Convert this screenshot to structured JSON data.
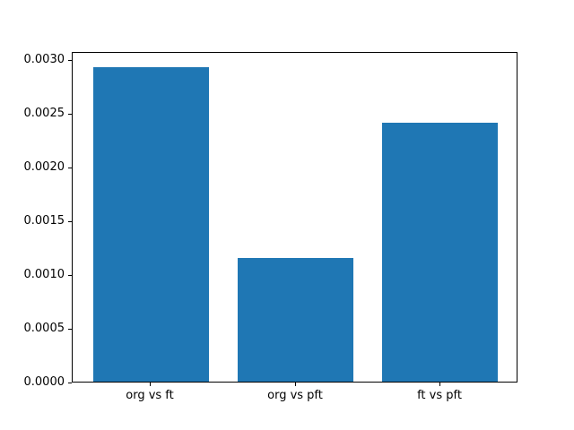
{
  "chart_data": {
    "type": "bar",
    "categories": [
      "org vs ft",
      "org vs pft",
      "ft vs pft"
    ],
    "values": [
      0.00293,
      0.00115,
      0.00241
    ],
    "title": "",
    "xlabel": "",
    "ylabel": "",
    "ylim": [
      0,
      0.0030765
    ],
    "yticks": [
      0.0,
      0.0005,
      0.001,
      0.0015,
      0.002,
      0.0025,
      0.003
    ],
    "ytick_labels": [
      "0.0000",
      "0.0005",
      "0.0010",
      "0.0015",
      "0.0020",
      "0.0025",
      "0.0030"
    ],
    "bar_width_fraction": 0.8,
    "grid": false,
    "legend": null,
    "bar_color": "#1f77b4"
  },
  "colors": {
    "background": "#ffffff",
    "spine": "#000000",
    "tick": "#000000",
    "text": "#000000"
  }
}
